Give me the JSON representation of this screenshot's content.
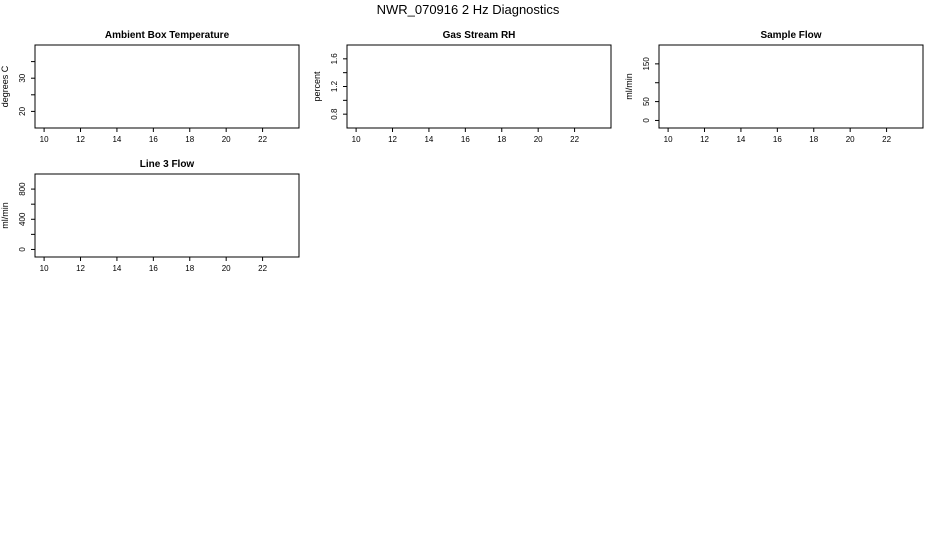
{
  "page": {
    "title": "NWR_070916  2 Hz Diagnostics"
  },
  "chart_data": [
    {
      "type": "line",
      "title": "Ambient Box Temperature",
      "xlabel": "",
      "ylabel": "degrees C",
      "xlim": [
        9.5,
        24
      ],
      "ylim": [
        15,
        40
      ],
      "x_ticks": [
        10,
        12,
        14,
        16,
        18,
        20,
        22
      ],
      "y_ticks": [
        20,
        25,
        30,
        35
      ],
      "y_tick_labels": [
        "20",
        "",
        "30",
        ""
      ],
      "series": [],
      "grid": false
    },
    {
      "type": "line",
      "title": "Gas Stream RH",
      "xlabel": "",
      "ylabel": "percent",
      "xlim": [
        9.5,
        24
      ],
      "ylim": [
        0.6,
        1.8
      ],
      "x_ticks": [
        10,
        12,
        14,
        16,
        18,
        20,
        22
      ],
      "y_ticks": [
        0.8,
        1.0,
        1.2,
        1.4,
        1.6
      ],
      "y_tick_labels": [
        "0.8",
        "",
        "1.2",
        "",
        "1.6"
      ],
      "series": [],
      "grid": false
    },
    {
      "type": "line",
      "title": "Sample Flow",
      "xlabel": "",
      "ylabel": "ml/min",
      "xlim": [
        9.5,
        24
      ],
      "ylim": [
        -20,
        200
      ],
      "x_ticks": [
        10,
        12,
        14,
        16,
        18,
        20,
        22
      ],
      "y_ticks": [
        0,
        50,
        100,
        150
      ],
      "y_tick_labels": [
        "0",
        "50",
        "",
        "150"
      ],
      "series": [],
      "grid": false
    },
    {
      "type": "line",
      "title": "Line 3 Flow",
      "xlabel": "",
      "ylabel": "ml/min",
      "xlim": [
        9.5,
        24
      ],
      "ylim": [
        -100,
        1000
      ],
      "x_ticks": [
        10,
        12,
        14,
        16,
        18,
        20,
        22
      ],
      "y_ticks": [
        0,
        200,
        400,
        600,
        800
      ],
      "y_tick_labels": [
        "0",
        "",
        "400",
        "",
        "800"
      ],
      "series": [],
      "grid": false
    }
  ]
}
